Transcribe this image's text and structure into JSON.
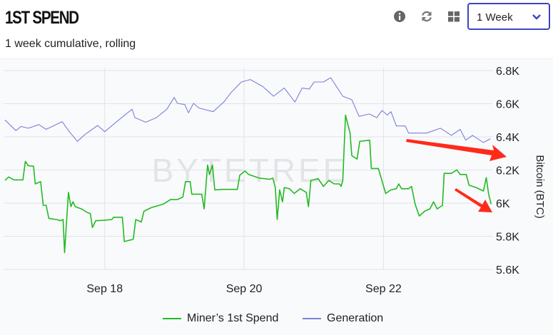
{
  "header": {
    "title": "1ST SPEND",
    "subtitle": "1 week cumulative, rolling",
    "icons": [
      "info-icon",
      "refresh-icon",
      "grid-icon"
    ],
    "range_select": {
      "value": "1 Week"
    }
  },
  "watermark": "BYTETREE",
  "colors": {
    "miner": "#22bb22",
    "generation": "#7b80d6",
    "accent": "#3b45c4",
    "annotation": "#ff2a1a"
  },
  "chart_data": {
    "type": "line",
    "title": "",
    "xlabel": "",
    "ylabel": "Bitcoin (BTC)",
    "xlim": [
      "Sep 16 13:10",
      "Sep 23 13:30"
    ],
    "ylim": [
      5600,
      6800
    ],
    "yticks": [
      5600,
      5800,
      6000,
      6200,
      6400,
      6600,
      6800
    ],
    "ytick_labels": [
      "5.6K",
      "5.8K",
      "6K",
      "6.2K",
      "6.4K",
      "6.6K",
      "6.8K"
    ],
    "xticks": [
      "Sep 18 00:00",
      "Sep 20 00:00",
      "Sep 22 00:00"
    ],
    "xtick_labels": [
      "Sep 18",
      "Sep 20",
      "Sep 22"
    ],
    "grid": true,
    "legend_position": "bottom",
    "annotations": [
      "red-arrow-down-right",
      "red-arrow-down-right"
    ],
    "series": [
      {
        "name": "Miner’s 1st Spend",
        "color": "#22bb22",
        "x": [
          "Sep 16 13:40",
          "Sep 16 14:55",
          "Sep 16 16:45",
          "Sep 16 19:50",
          "Sep 16 20:40",
          "Sep 16 21:40",
          "Sep 16 23:30",
          "Sep 17 00:05",
          "Sep 17 01:55",
          "Sep 17 02:50",
          "Sep 17 03:50",
          "Sep 17 04:45",
          "Sep 17 07:30",
          "Sep 17 08:40",
          "Sep 17 09:40",
          "Sep 17 10:10",
          "Sep 17 11:30",
          "Sep 17 12:20",
          "Sep 17 13:05",
          "Sep 17 13:50",
          "Sep 17 16:00",
          "Sep 17 17:55",
          "Sep 17 19:05",
          "Sep 17 19:45",
          "Sep 17 20:55",
          "Sep 17 23:25",
          "Sep 18 02:25",
          "Sep 18 03:05",
          "Sep 18 06:05",
          "Sep 18 06:45",
          "Sep 18 09:50",
          "Sep 18 10:40",
          "Sep 18 12:35",
          "Sep 18 13:30",
          "Sep 18 15:55",
          "Sep 18 20:10",
          "Sep 18 22:40",
          "Sep 19 01:05",
          "Sep 19 02:55",
          "Sep 19 03:50",
          "Sep 19 05:25",
          "Sep 19 06:00",
          "Sep 19 09:25",
          "Sep 19 10:15",
          "Sep 19 11:25",
          "Sep 19 12:05",
          "Sep 19 13:05",
          "Sep 19 13:55",
          "Sep 19 16:25",
          "Sep 19 21:40",
          "Sep 19 22:30",
          "Sep 20 00:20",
          "Sep 20 01:35",
          "Sep 20 05:15",
          "Sep 20 08:55",
          "Sep 20 09:55",
          "Sep 20 10:45",
          "Sep 20 11:25",
          "Sep 20 12:15",
          "Sep 20 13:15",
          "Sep 20 13:50",
          "Sep 20 15:40",
          "Sep 20 17:15",
          "Sep 20 19:20",
          "Sep 20 21:25",
          "Sep 20 22:10",
          "Sep 20 23:00",
          "Sep 21 01:30",
          "Sep 21 03:20",
          "Sep 21 05:10",
          "Sep 21 07:00",
          "Sep 21 08:50",
          "Sep 21 09:25",
          "Sep 21 10:00",
          "Sep 21 10:55",
          "Sep 21 12:30",
          "Sep 21 13:05",
          "Sep 21 14:55",
          "Sep 21 15:50",
          "Sep 21 19:15",
          "Sep 21 19:50",
          "Sep 21 22:15",
          "Sep 22 00:45",
          "Sep 22 02:35",
          "Sep 22 04:25",
          "Sep 22 05:15",
          "Sep 22 06:15",
          "Sep 22 08:40",
          "Sep 22 09:40",
          "Sep 22 10:55",
          "Sep 22 12:20",
          "Sep 22 14:10",
          "Sep 22 16:00",
          "Sep 22 17:15",
          "Sep 22 18:30",
          "Sep 22 20:20",
          "Sep 22 20:55",
          "Sep 22 23:25",
          "Sep 23 01:15",
          "Sep 23 02:25",
          "Sep 23 04:30",
          "Sep 23 05:30",
          "Sep 23 07:55",
          "Sep 23 10:25",
          "Sep 23 11:25",
          "Sep 23 12:15",
          "Sep 23 13:05"
        ],
        "values": [
          6137,
          6158,
          6140,
          6140,
          6252,
          6226,
          6223,
          6116,
          6130,
          5987,
          5987,
          5908,
          5901,
          5894,
          5901,
          5701,
          6065,
          5979,
          6008,
          5979,
          5965,
          5944,
          5937,
          5853,
          5894,
          5896,
          5901,
          5915,
          5915,
          5768,
          5782,
          5901,
          5886,
          5951,
          5972,
          5994,
          6022,
          6022,
          6037,
          6130,
          6130,
          6054,
          6054,
          5965,
          6230,
          6173,
          6230,
          6080,
          6083,
          6083,
          6168,
          6194,
          6173,
          6151,
          6144,
          6151,
          6094,
          5901,
          6080,
          6008,
          6094,
          6087,
          6058,
          6087,
          6065,
          5979,
          6137,
          6148,
          6101,
          6137,
          6116,
          6116,
          6101,
          6137,
          6531,
          6423,
          6287,
          6266,
          6373,
          6380,
          6209,
          6209,
          6058,
          6080,
          6087,
          6116,
          6087,
          6087,
          6101,
          5994,
          5922,
          5951,
          5965,
          6008,
          5965,
          5987,
          6180,
          6180,
          6201,
          6173,
          6173,
          6108,
          6094,
          6073,
          6154,
          6051,
          5994
        ]
      },
      {
        "name": "Generation",
        "color": "#7b80d6",
        "x": [
          "Sep 16 13:40",
          "Sep 16 17:25",
          "Sep 16 19:10",
          "Sep 16 21:40",
          "Sep 17 01:20",
          "Sep 17 03:50",
          "Sep 17 09:20",
          "Sep 17 11:50",
          "Sep 17 14:35",
          "Sep 17 17:20",
          "Sep 17 21:35",
          "Sep 18 00:00",
          "Sep 18 04:20",
          "Sep 18 09:25",
          "Sep 18 10:25",
          "Sep 18 14:05",
          "Sep 18 17:50",
          "Sep 18 21:25",
          "Sep 18 23:55",
          "Sep 19 01:05",
          "Sep 19 03:35",
          "Sep 19 04:50",
          "Sep 19 06:35",
          "Sep 19 08:25",
          "Sep 19 13:20",
          "Sep 19 17:00",
          "Sep 19 19:30",
          "Sep 19 23:05",
          "Sep 20 02:10",
          "Sep 20 06:30",
          "Sep 20 10:10",
          "Sep 20 13:50",
          "Sep 20 17:30",
          "Sep 20 20:00",
          "Sep 20 22:25",
          "Sep 21 00:10",
          "Sep 21 03:20",
          "Sep 21 05:50",
          "Sep 21 07:35",
          "Sep 21 10:00",
          "Sep 21 13:05",
          "Sep 21 15:35",
          "Sep 21 19:10",
          "Sep 21 21:40",
          "Sep 21 23:30",
          "Sep 22 01:20",
          "Sep 22 02:35",
          "Sep 22 04:25",
          "Sep 22 07:30",
          "Sep 22 08:40",
          "Sep 22 12:25",
          "Sep 22 14:50",
          "Sep 22 19:40",
          "Sep 22 23:25",
          "Sep 23 02:25",
          "Sep 23 04:20",
          "Sep 23 06:40",
          "Sep 23 10:25",
          "Sep 23 12:50"
        ],
        "values": [
          6502,
          6438,
          6463,
          6452,
          6474,
          6445,
          6492,
          6431,
          6373,
          6416,
          6469,
          6431,
          6495,
          6567,
          6516,
          6488,
          6516,
          6567,
          6638,
          6602,
          6595,
          6545,
          6602,
          6574,
          6552,
          6610,
          6667,
          6731,
          6746,
          6703,
          6645,
          6695,
          6610,
          6695,
          6688,
          6731,
          6731,
          6757,
          6710,
          6645,
          6624,
          6524,
          6538,
          6516,
          6559,
          6531,
          6552,
          6466,
          6466,
          6423,
          6423,
          6423,
          6452,
          6409,
          6445,
          6380,
          6409,
          6366,
          6388
        ]
      }
    ]
  },
  "legend": {
    "items": [
      "Miner’s 1st Spend",
      "Generation"
    ]
  }
}
